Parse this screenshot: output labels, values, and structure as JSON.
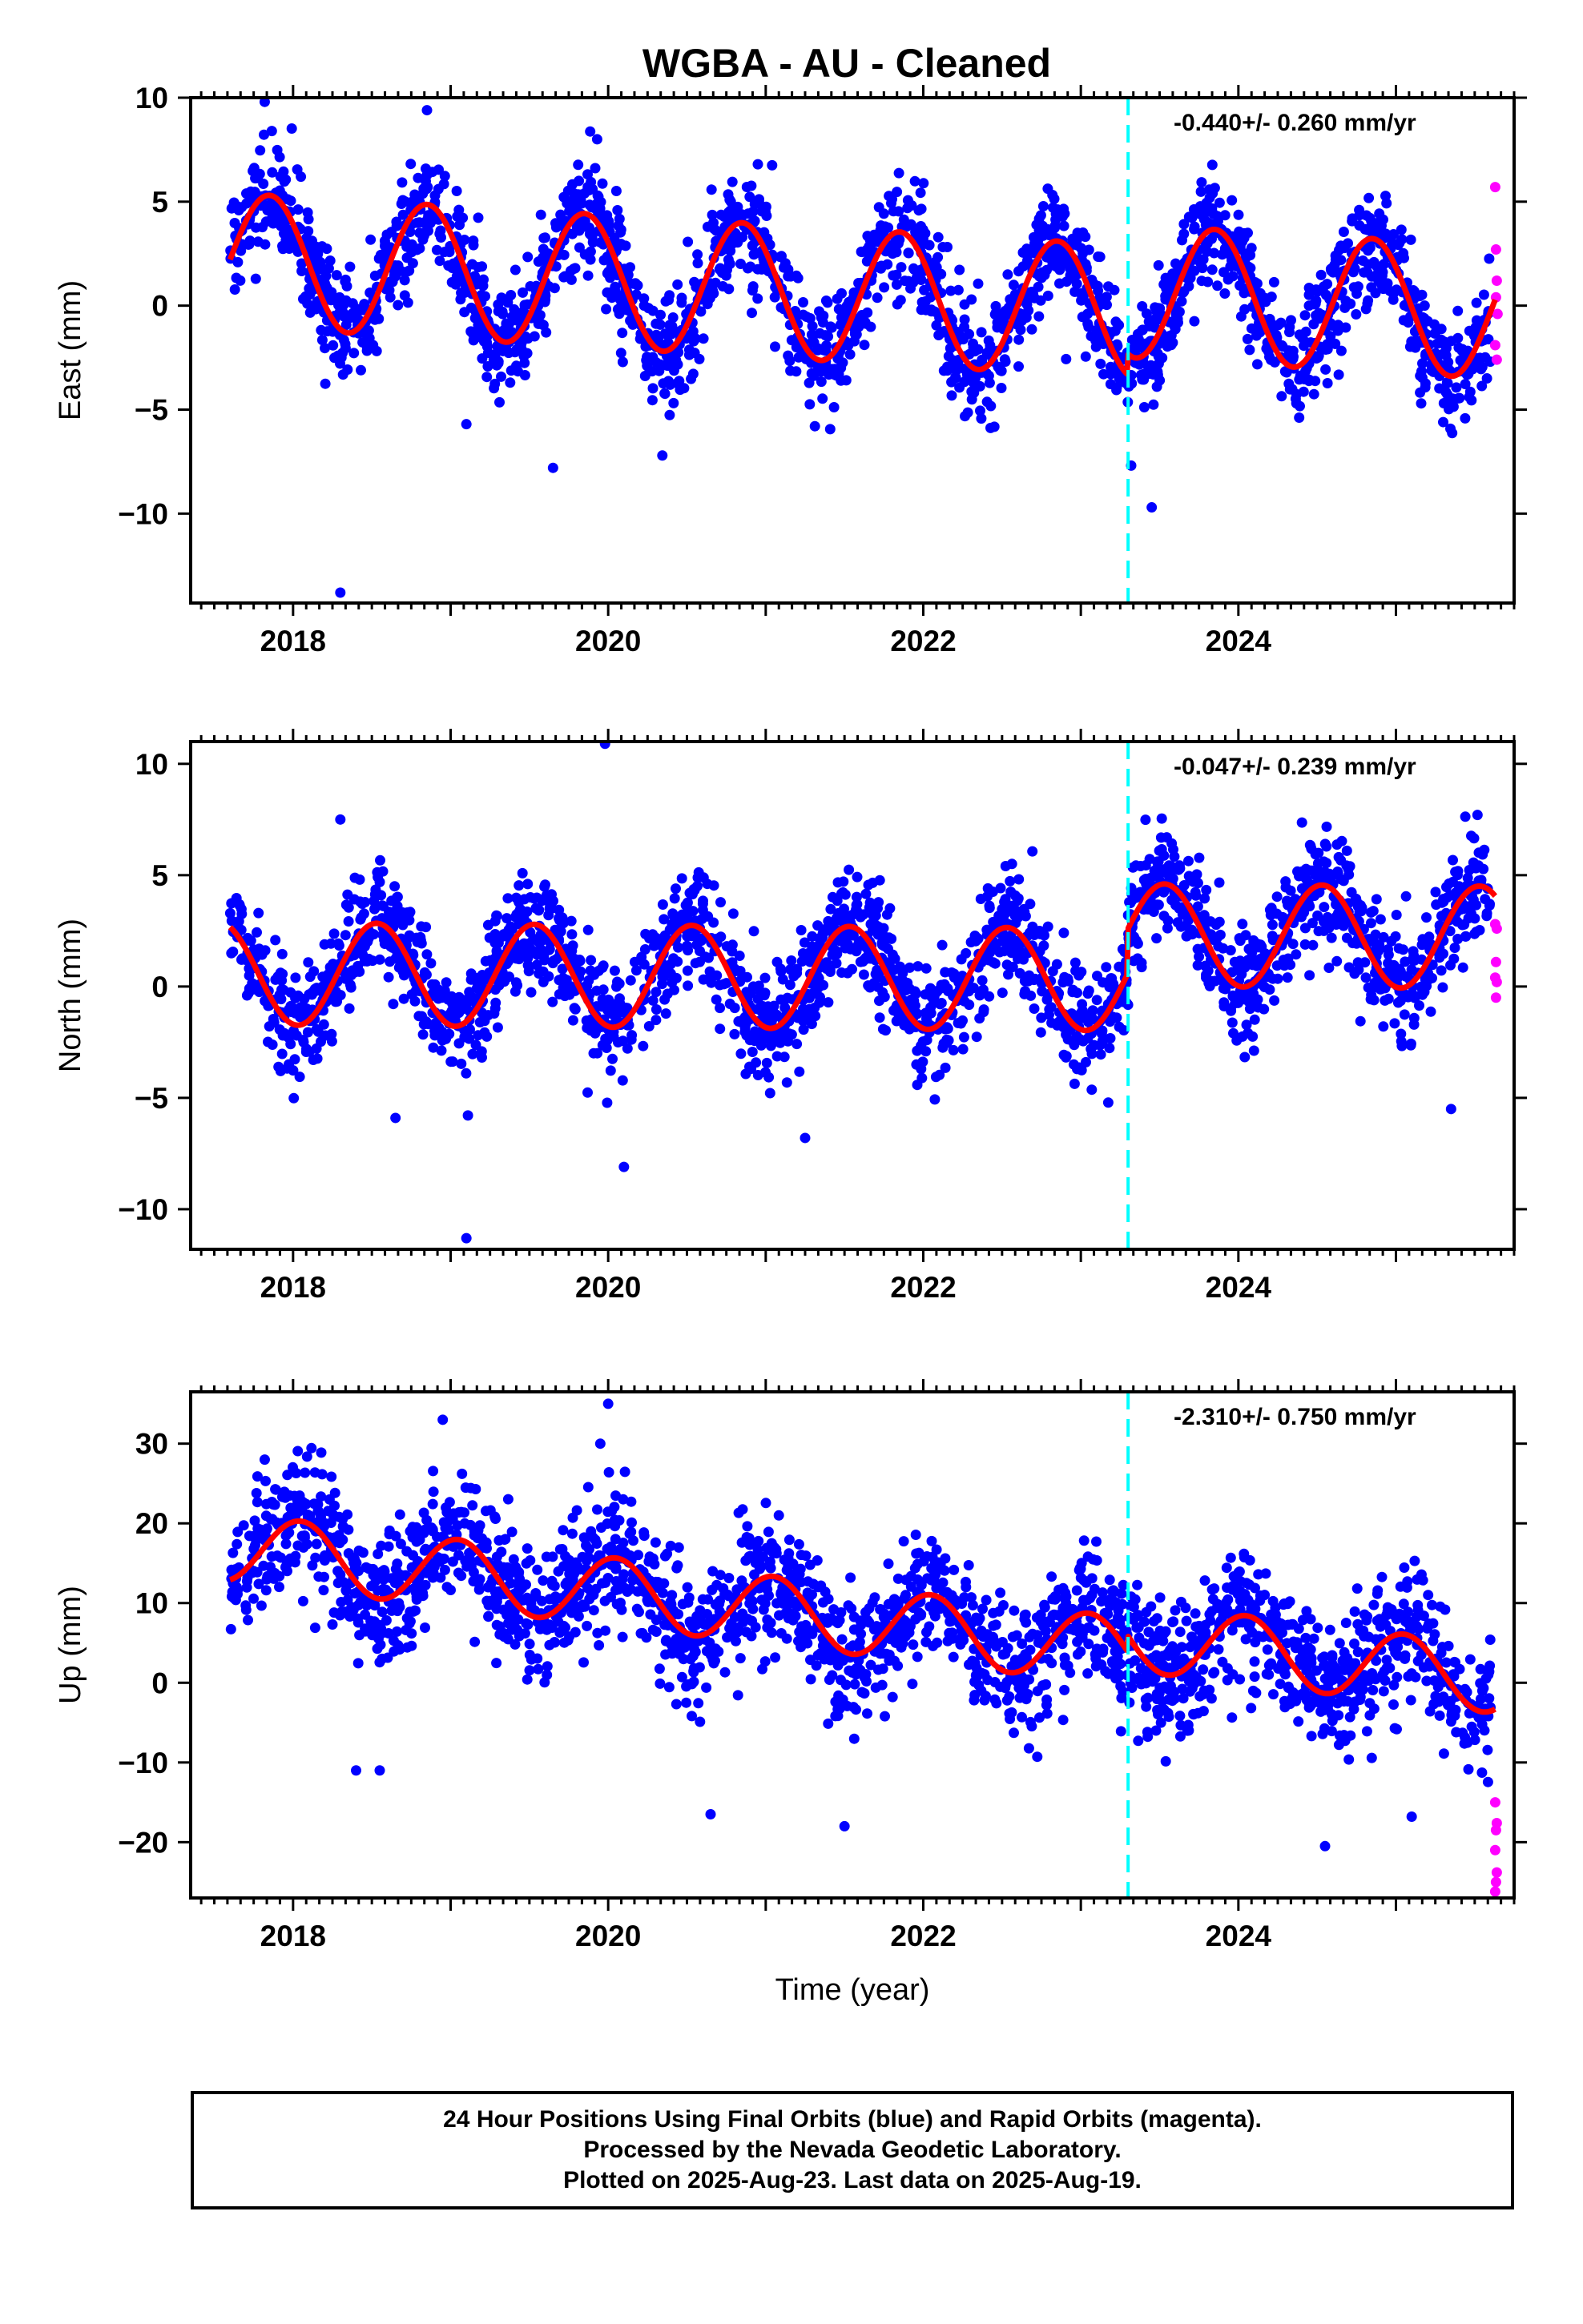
{
  "title": "WGBA  - AU - Cleaned",
  "colors": {
    "final_orbits": "#0000ff",
    "rapid_orbits": "#ff00ff",
    "model": "#ff0000",
    "event": "#00ffff",
    "frame": "#000000"
  },
  "footer": {
    "line1": "24 Hour Positions Using Final Orbits (blue) and Rapid Orbits (magenta).",
    "line2": "Processed by the Nevada Geodetic Laboratory.",
    "line3": "Plotted on 2025-Aug-23. Last data on 2025-Aug-19."
  },
  "chart_data": [
    {
      "type": "scatter",
      "ylabel": "East (mm)",
      "xlabel": "",
      "rate_text": "-0.440+/- 0.260 mm/yr",
      "xlim": [
        2017.35,
        2025.75
      ],
      "ylim": [
        -14.3,
        10.0
      ],
      "x_ticks": [
        2018,
        2020,
        2022,
        2024
      ],
      "x_tick_labels": [
        "2018",
        "2020",
        "2022",
        "2024"
      ],
      "y_ticks": [
        10,
        5,
        0,
        -5,
        -10
      ],
      "y_tick_labels": [
        "10",
        "5",
        "0",
        "−5",
        "−10"
      ],
      "event_line_x": 2023.3,
      "model": {
        "start_time": 2017.6,
        "end_time": 2025.63,
        "offset": 0.5,
        "trend": -0.44,
        "amplitude": 3.2,
        "phase_time": 2017.85,
        "event_jump": 1.0
      },
      "scatter": {
        "noise_std": 1.3,
        "count": 2250
      },
      "outliers": [
        {
          "x": 2018.3,
          "y": -13.8
        },
        {
          "x": 2019.1,
          "y": -5.7
        },
        {
          "x": 2019.65,
          "y": -7.8
        },
        {
          "x": 2023.45,
          "y": -9.7
        },
        {
          "x": 2025.3,
          "y": -5.6
        },
        {
          "x": 2017.82,
          "y": 9.8
        },
        {
          "x": 2018.85,
          "y": 9.4
        },
        {
          "x": 2019.93,
          "y": 8.0
        },
        {
          "x": 2020.95,
          "y": 6.8
        }
      ],
      "rapid": [
        {
          "x": 2025.63,
          "y": 5.7
        },
        {
          "x": 2025.635,
          "y": 2.7
        },
        {
          "x": 2025.64,
          "y": 1.2
        },
        {
          "x": 2025.635,
          "y": 0.4
        },
        {
          "x": 2025.645,
          "y": -0.4
        },
        {
          "x": 2025.63,
          "y": -1.9
        },
        {
          "x": 2025.64,
          "y": -2.6
        }
      ]
    },
    {
      "type": "scatter",
      "ylabel": "North (mm)",
      "xlabel": "",
      "rate_text": "-0.047+/- 0.239 mm/yr",
      "xlim": [
        2017.35,
        2025.75
      ],
      "ylim": [
        -11.8,
        11.0
      ],
      "x_ticks": [
        2018,
        2020,
        2022,
        2024
      ],
      "x_tick_labels": [
        "2018",
        "2020",
        "2022",
        "2024"
      ],
      "y_ticks": [
        10,
        5,
        0,
        -5,
        -10
      ],
      "y_tick_labels": [
        "10",
        "5",
        "0",
        "−5",
        "−10"
      ],
      "event_line_x": 2023.3,
      "model": {
        "start_time": 2017.6,
        "end_time": 2025.63,
        "offset": 0.4,
        "trend": -0.047,
        "amplitude": 2.3,
        "phase_time": 2018.53,
        "event_jump": 2.0
      },
      "scatter": {
        "noise_std": 1.25,
        "count": 2250
      },
      "outliers": [
        {
          "x": 2019.98,
          "y": 10.9
        },
        {
          "x": 2019.1,
          "y": -11.3
        },
        {
          "x": 2020.1,
          "y": -8.1
        },
        {
          "x": 2021.25,
          "y": -6.8
        },
        {
          "x": 2018.65,
          "y": -5.9
        },
        {
          "x": 2025.35,
          "y": -5.5
        },
        {
          "x": 2018.3,
          "y": 7.5
        }
      ],
      "rapid": [
        {
          "x": 2025.63,
          "y": 2.8
        },
        {
          "x": 2025.64,
          "y": 2.6
        },
        {
          "x": 2025.635,
          "y": 1.1
        },
        {
          "x": 2025.63,
          "y": 0.4
        },
        {
          "x": 2025.64,
          "y": 0.2
        },
        {
          "x": 2025.635,
          "y": -0.5
        }
      ]
    },
    {
      "type": "scatter",
      "ylabel": "Up (mm)",
      "xlabel": "Time (year)",
      "rate_text": "-2.310+/- 0.750 mm/yr",
      "xlim": [
        2017.35,
        2025.75
      ],
      "ylim": [
        -27.0,
        36.5
      ],
      "x_ticks": [
        2018,
        2020,
        2022,
        2024
      ],
      "x_tick_labels": [
        "2018",
        "2020",
        "2022",
        "2024"
      ],
      "y_ticks": [
        30,
        20,
        10,
        0,
        -10,
        -20
      ],
      "y_tick_labels": [
        "30",
        "20",
        "10",
        "0",
        "−10",
        "−20"
      ],
      "event_line_x": 2023.3,
      "model": {
        "start_time": 2017.6,
        "end_time": 2025.63,
        "offset": 8.0,
        "trend": -2.31,
        "amplitude": 4.3,
        "phase_time": 2018.05,
        "event_jump": 2.0
      },
      "scatter": {
        "noise_std": 4.0,
        "count": 2250
      },
      "outliers": [
        {
          "x": 2020.0,
          "y": 35.0
        },
        {
          "x": 2018.95,
          "y": 33.0
        },
        {
          "x": 2017.82,
          "y": 28.0
        },
        {
          "x": 2019.95,
          "y": 30.0
        },
        {
          "x": 2020.65,
          "y": -16.5
        },
        {
          "x": 2021.5,
          "y": -18.0
        },
        {
          "x": 2024.55,
          "y": -20.5
        },
        {
          "x": 2025.1,
          "y": -16.8
        },
        {
          "x": 2018.4,
          "y": -11.0
        },
        {
          "x": 2018.55,
          "y": -11.0
        }
      ],
      "rapid": [
        {
          "x": 2025.63,
          "y": -15.0
        },
        {
          "x": 2025.64,
          "y": -17.6
        },
        {
          "x": 2025.635,
          "y": -18.5
        },
        {
          "x": 2025.63,
          "y": -21.0
        },
        {
          "x": 2025.64,
          "y": -23.8
        },
        {
          "x": 2025.635,
          "y": -25.0
        },
        {
          "x": 2025.63,
          "y": -26.2
        }
      ]
    }
  ]
}
